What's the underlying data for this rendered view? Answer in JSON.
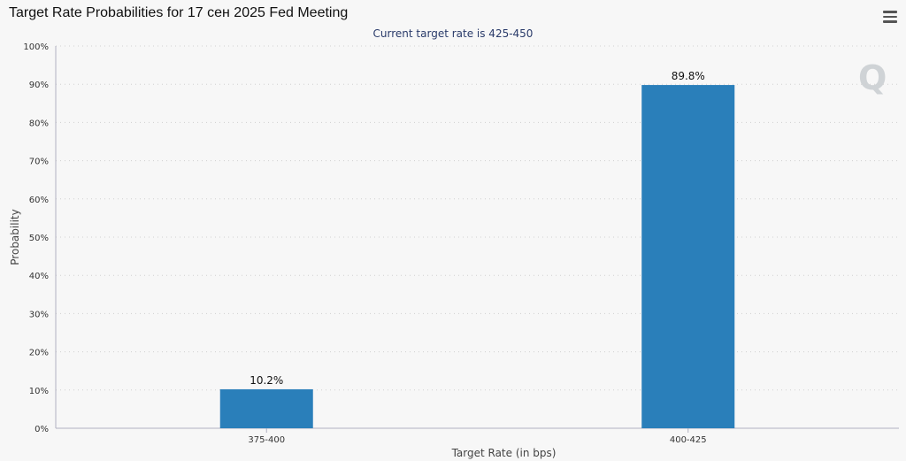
{
  "chart_data": {
    "type": "bar",
    "title": "Target Rate Probabilities for 17 сен 2025 Fed Meeting",
    "subtitle": "Current target rate is 425-450",
    "xlabel": "Target Rate (in bps)",
    "ylabel": "Probability",
    "categories": [
      "375-400",
      "400-425"
    ],
    "values": [
      10.2,
      89.8
    ],
    "data_labels": [
      "10.2%",
      "89.8%"
    ],
    "ylim": [
      0,
      100
    ],
    "yticks": [
      0,
      10,
      20,
      30,
      40,
      50,
      60,
      70,
      80,
      90,
      100
    ],
    "ytick_labels": [
      "0%",
      "10%",
      "20%",
      "30%",
      "40%",
      "50%",
      "60%",
      "70%",
      "80%",
      "90%",
      "100%"
    ],
    "grid": true,
    "legend": "none",
    "colors": {
      "bar": "#2a7fba",
      "grid": "#d0d0d0",
      "axis": "#b0b0c0",
      "background": "#f7f7f7"
    }
  },
  "watermark_text": "Q"
}
